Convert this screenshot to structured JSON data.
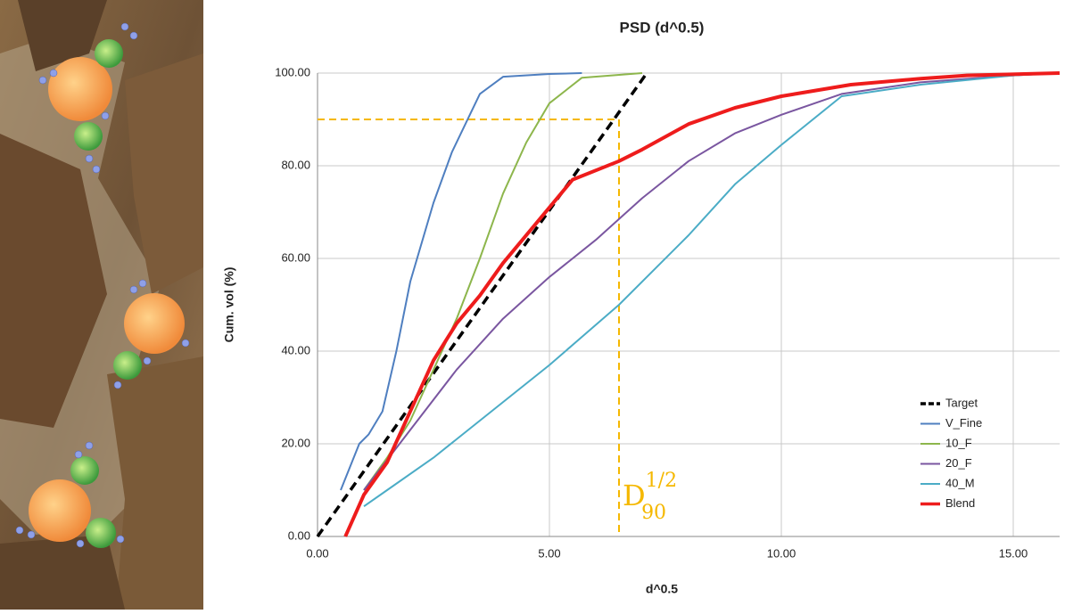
{
  "chart_data": {
    "type": "line",
    "title": "PSD (d^0.5)",
    "x_label": "d^0.5",
    "y_label": "Cum. vol (%)",
    "xlim": [
      0,
      16
    ],
    "ylim": [
      0,
      100
    ],
    "xticks": [
      {
        "value": 0,
        "label": "0.00"
      },
      {
        "value": 5,
        "label": "5.00"
      },
      {
        "value": 10,
        "label": "10.00"
      },
      {
        "value": 15,
        "label": "15.00"
      }
    ],
    "yticks": [
      {
        "value": 0,
        "label": "0.00"
      },
      {
        "value": 20,
        "label": "20.00"
      },
      {
        "value": 40,
        "label": "40.00"
      },
      {
        "value": 60,
        "label": "60.00"
      },
      {
        "value": 80,
        "label": "80.00"
      },
      {
        "value": 100,
        "label": "100.00"
      }
    ],
    "grid": true,
    "legend": "lower right",
    "series": [
      {
        "name": "Target",
        "color": "#000000",
        "dashed": true,
        "x": [
          0,
          7.1
        ],
        "values": [
          0,
          100
        ]
      },
      {
        "name": "V_Fine",
        "color": "#4f7fc0",
        "x": [
          0.5,
          0.9,
          1.1,
          1.4,
          1.7,
          2.0,
          2.5,
          2.9,
          3.5,
          4.0,
          5.0,
          5.7
        ],
        "values": [
          10,
          20,
          22,
          27,
          40,
          55,
          72,
          83,
          95.5,
          99.2,
          99.8,
          100
        ]
      },
      {
        "name": "10_F",
        "color": "#8db64c",
        "x": [
          1.0,
          1.5,
          2.0,
          2.5,
          3.0,
          3.5,
          4.0,
          4.5,
          5.0,
          5.7,
          7.0
        ],
        "values": [
          10,
          17,
          25,
          36,
          47,
          60,
          74,
          85,
          93.5,
          99,
          100
        ]
      },
      {
        "name": "20_F",
        "color": "#7a56a0",
        "x": [
          1,
          2,
          3,
          4,
          5,
          6,
          7,
          8,
          9,
          10,
          11.3,
          13,
          15,
          16
        ],
        "values": [
          10,
          23,
          36,
          47,
          56,
          64,
          73,
          81,
          87,
          91,
          95.5,
          98,
          99.5,
          100
        ]
      },
      {
        "name": "40_M",
        "color": "#4bacc6",
        "x": [
          1.0,
          1.5,
          2.5,
          3.5,
          5,
          6.5,
          8,
          9,
          10,
          11.3,
          13,
          15,
          16
        ],
        "values": [
          6.5,
          10,
          17,
          25,
          37,
          50,
          65,
          76,
          84.5,
          95,
          97.5,
          99.5,
          100
        ]
      },
      {
        "name": "Blend",
        "color": "#ee1c1c",
        "width": 4,
        "x": [
          0.6,
          1,
          1.5,
          2,
          2.5,
          3,
          3.5,
          4,
          5,
          5.5,
          6.5,
          7,
          8,
          9,
          10,
          11.5,
          13,
          14,
          16
        ],
        "values": [
          0,
          9,
          16,
          27,
          38,
          46,
          52,
          59,
          71,
          77,
          81,
          83.5,
          89,
          92.5,
          95,
          97.5,
          98.8,
          99.5,
          100
        ]
      }
    ],
    "d90_guide": {
      "x": 6.5,
      "y": 90,
      "color": "#f5b800"
    },
    "annotation": {
      "base": "D",
      "sub": "90",
      "sup": "1/2"
    }
  }
}
